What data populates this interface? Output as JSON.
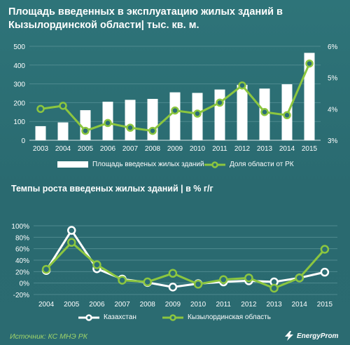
{
  "header": {
    "title_line1": "Площадь введенных  в эксплуатацию жилых зданий в",
    "title_line2": "Кызылординской области| тыс. кв. м."
  },
  "footer": {
    "source": "Источник: КС МНЭ РК",
    "brand": "EnergyProm"
  },
  "colors": {
    "background": "#2c6e74",
    "bar": "#ffffff",
    "accent_green": "#8cc63f",
    "line_white": "#ffffff",
    "grid": "#4f8a8f"
  },
  "chart_data": [
    {
      "type": "bar+line",
      "title": "Площадь введенных  в эксплуатацию жилых зданий в Кызылординской области| тыс. кв. м.",
      "categories": [
        "2003",
        "2004",
        "2005",
        "2006",
        "2007",
        "2008",
        "2009",
        "2010",
        "2011",
        "2012",
        "2013",
        "2014",
        "2015"
      ],
      "y_left": {
        "ylim": [
          0,
          500
        ],
        "ticks": [
          "0",
          "100",
          "200",
          "300",
          "400",
          "500"
        ]
      },
      "y_right": {
        "ylim": [
          3,
          6
        ],
        "ticks": [
          "3%",
          "4%",
          "5%",
          "6%"
        ]
      },
      "series": [
        {
          "name": "Площадь введеных жилых зданий",
          "kind": "bar",
          "axis": "left",
          "values": [
            75,
            95,
            160,
            205,
            215,
            220,
            255,
            252,
            270,
            295,
            275,
            298,
            465
          ]
        },
        {
          "name": "Доля области от РК",
          "kind": "line",
          "axis": "right",
          "values": [
            4.0,
            4.1,
            3.3,
            3.55,
            3.4,
            3.3,
            3.95,
            3.85,
            4.2,
            4.75,
            3.9,
            3.8,
            5.45
          ]
        }
      ],
      "grid": true,
      "legend": "bottom"
    },
    {
      "type": "line",
      "title": "Темпы роста введеных жилых зданий | в % г/г",
      "categories": [
        "2004",
        "2005",
        "2006",
        "2007",
        "2008",
        "2009",
        "2010",
        "2011",
        "2012",
        "2013",
        "2014",
        "2015"
      ],
      "ylim": [
        -20,
        100
      ],
      "ticks": [
        "-20%",
        "0%",
        "20%",
        "40%",
        "60%",
        "80%",
        "100%"
      ],
      "series": [
        {
          "name": "Казахстан",
          "color": "#ffffff",
          "values": [
            22,
            92,
            25,
            7,
            1,
            -7,
            -1,
            2,
            4,
            2,
            9,
            19
          ]
        },
        {
          "name": "Кызылординская область",
          "color": "#8cc63f",
          "values": [
            24,
            71,
            32,
            5,
            2,
            17,
            -2,
            6,
            9,
            -9,
            9,
            59
          ]
        }
      ],
      "grid": true,
      "legend": "bottom"
    }
  ]
}
